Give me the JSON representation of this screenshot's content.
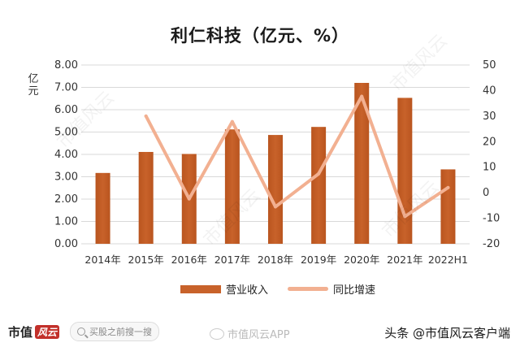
{
  "chart_data": {
    "type": "bar",
    "title": "利仁科技（亿元、%）",
    "ylabel": "亿元",
    "ylabel_right": "",
    "categories": [
      "2014年",
      "2015年",
      "2016年",
      "2017年",
      "2018年",
      "2019年",
      "2020年",
      "2021年",
      "2022H1"
    ],
    "series": [
      {
        "name": "营业收入",
        "type": "bar",
        "axis": "left",
        "color": "#c8622a",
        "values": [
          3.17,
          4.11,
          4.02,
          5.12,
          4.87,
          5.23,
          7.2,
          6.53,
          3.33
        ]
      },
      {
        "name": "同比增速",
        "type": "line",
        "axis": "right",
        "color": "#f2b091",
        "values": [
          null,
          30.0,
          -2.4,
          27.8,
          -5.5,
          7.4,
          37.7,
          -9.3,
          2.0
        ]
      }
    ],
    "ylim": [
      0,
      8
    ],
    "y_ticks": [
      "0.00",
      "1.00",
      "2.00",
      "3.00",
      "4.00",
      "5.00",
      "6.00",
      "7.00",
      "8.00"
    ],
    "ylim_right": [
      -20,
      50
    ],
    "y_right_ticks": [
      "-20",
      "-10",
      "0",
      "10",
      "20",
      "30",
      "40",
      "50"
    ],
    "grid": true,
    "legend_position": "bottom"
  },
  "footer": {
    "brand": "市值",
    "brand_mark": "风云",
    "search_placeholder": "买股之前搜一搜",
    "weibo_text": "市值风云APP",
    "credit": "头条 @市值风云客户端"
  },
  "watermark_text": "市值风云"
}
